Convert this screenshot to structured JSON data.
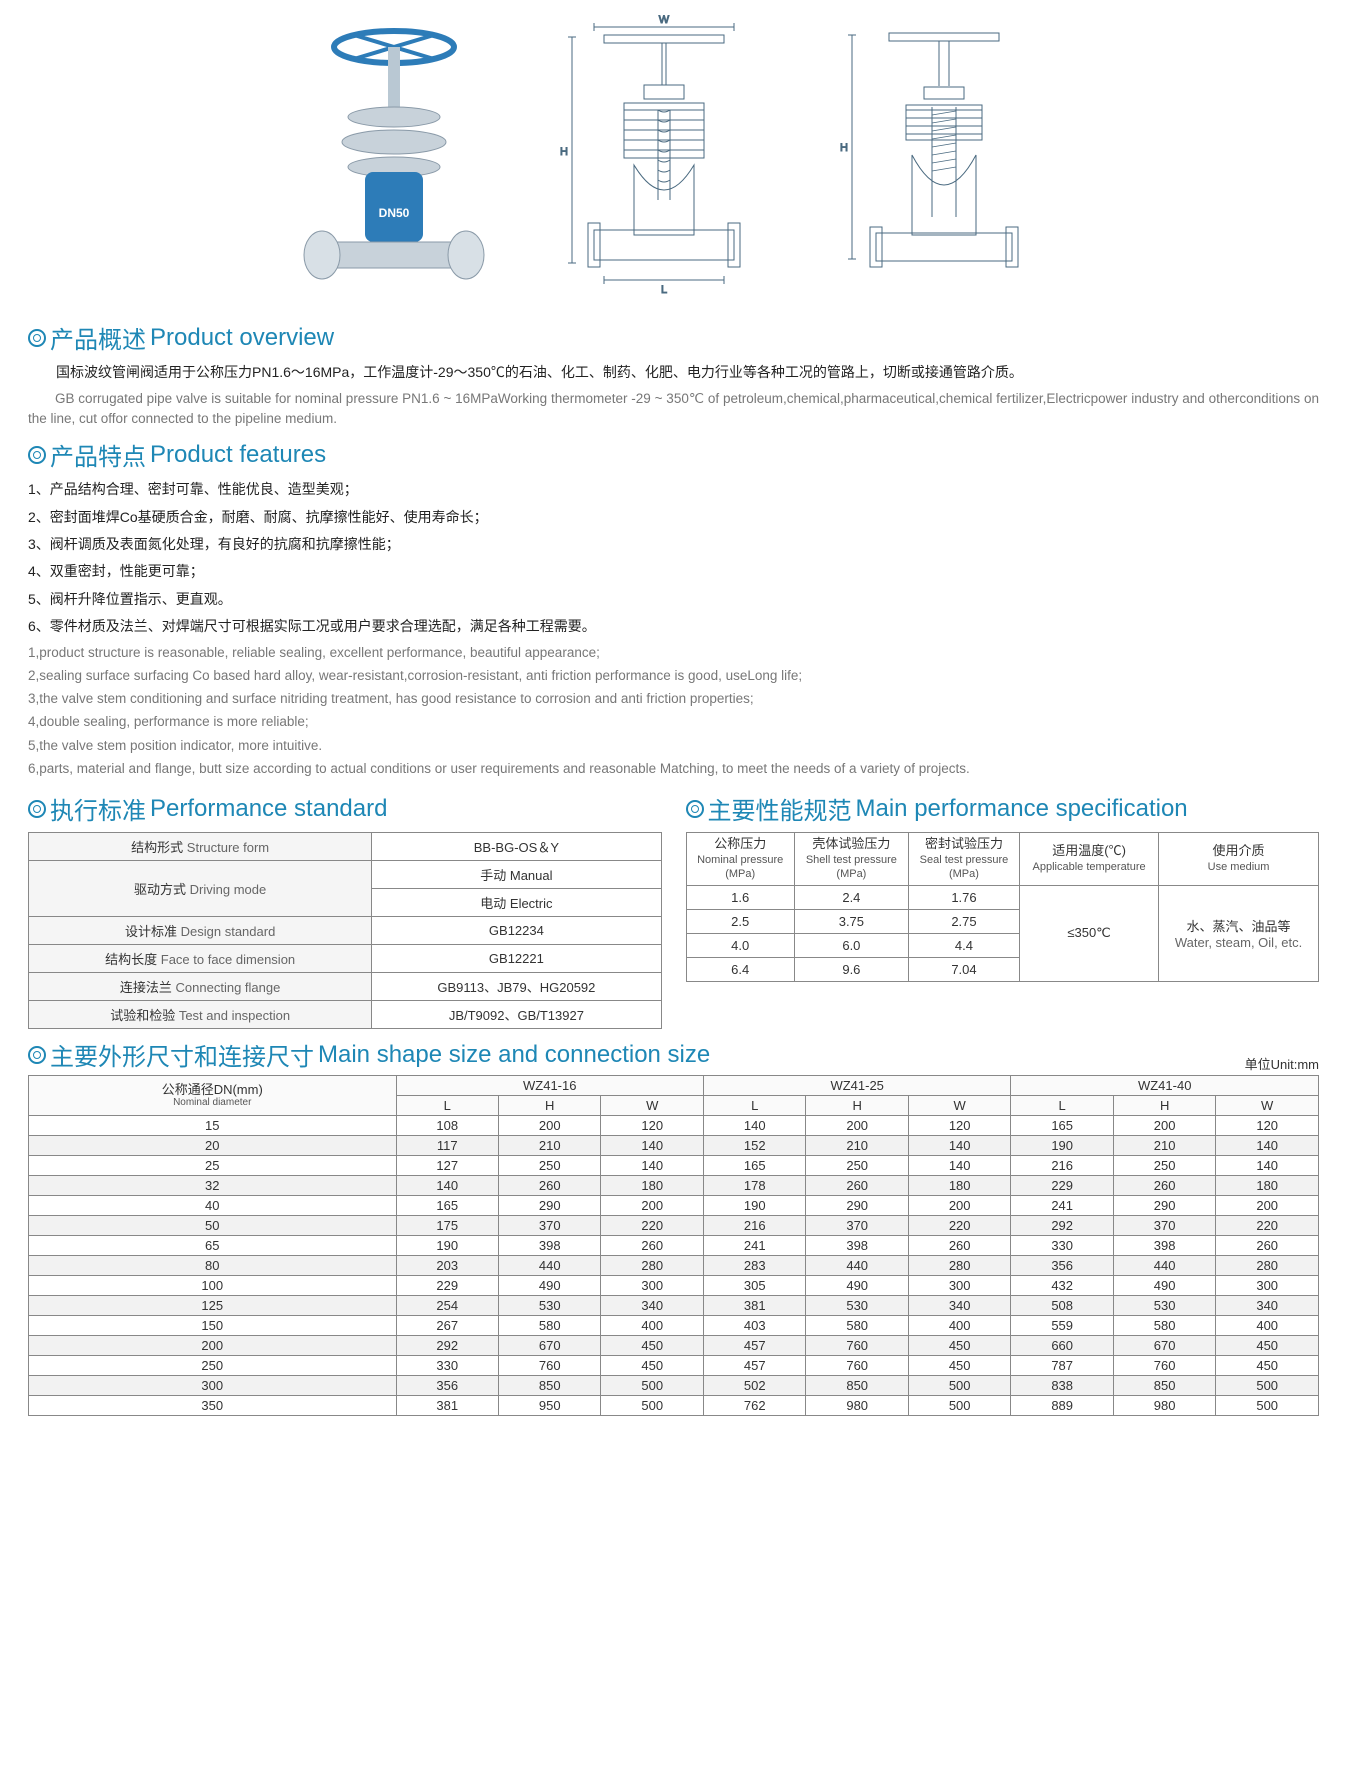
{
  "images_note": "valve photograph + two engineering cross-section drawings with W/H/L dimension callouts",
  "sections": {
    "overview": {
      "title_cn": "产品概述",
      "title_en": "Product overview",
      "p_cn": "国标波纹管闸阀适用于公称压力PN1.6～16MPa，工作温度计-29～350℃的石油、化工、制药、化肥、电力行业等各种工况的管路上，切断或接通管路介质。",
      "p_en": "GB corrugated pipe valve is suitable for nominal pressure PN1.6 ~ 16MPaWorking thermometer -29 ~ 350℃ of petroleum,chemical,pharmaceutical,chemical fertilizer,Electricpower industry and otherconditions on the line, cut offor connected to the pipeline medium."
    },
    "features": {
      "title_cn": "产品特点",
      "title_en": "Product features",
      "cn": [
        "1、产品结构合理、密封可靠、性能优良、造型美观；",
        "2、密封面堆焊Co基硬质合金，耐磨、耐腐、抗摩擦性能好、使用寿命长；",
        "3、阀杆调质及表面氮化处理，有良好的抗腐和抗摩擦性能；",
        "4、双重密封，性能更可靠；",
        "5、阀杆升降位置指示、更直观。",
        "6、零件材质及法兰、对焊端尺寸可根据实际工况或用户要求合理选配，满足各种工程需要。"
      ],
      "en": [
        "1,product structure is reasonable, reliable sealing, excellent performance, beautiful appearance;",
        "2,sealing surface surfacing Co based hard alloy, wear-resistant,corrosion-resistant, anti friction performance is good, useLong life;",
        "3,the valve stem conditioning and surface nitriding treatment, has good resistance to corrosion and anti friction properties;",
        "4,double sealing, performance is more reliable;",
        "5,the valve stem position indicator, more intuitive.",
        "6,parts, material and flange, butt size according to actual conditions or user requirements and reasonable Matching, to meet the needs of a variety of projects."
      ]
    },
    "perf_std": {
      "title_cn": "执行标准",
      "title_en": "Performance standard",
      "rows": [
        {
          "label_cn": "结构形式",
          "label_en": "Structure form",
          "vals": [
            "BB-BG-OS＆Y"
          ]
        },
        {
          "label_cn": "驱动方式",
          "label_en": "Driving mode",
          "vals": [
            "手动 Manual",
            "电动 Electric"
          ]
        },
        {
          "label_cn": "设计标准",
          "label_en": "Design standard",
          "vals": [
            "GB12234"
          ]
        },
        {
          "label_cn": "结构长度",
          "label_en": "Face to face dimension",
          "vals": [
            "GB12221"
          ]
        },
        {
          "label_cn": "连接法兰",
          "label_en": "Connecting flange",
          "vals": [
            "GB9113、JB79、HG20592"
          ]
        },
        {
          "label_cn": "试验和检验",
          "label_en": "Test and inspection",
          "vals": [
            "JB/T9092、GB/T13927"
          ]
        }
      ]
    },
    "main_spec": {
      "title_cn": "主要性能规范",
      "title_en": "Main performance specification",
      "headers": [
        {
          "cn": "公称压力",
          "en": "Nominal pressure",
          "unit": "(MPa)"
        },
        {
          "cn": "壳体试验压力",
          "en": "Shell test pressure",
          "unit": "(MPa)"
        },
        {
          "cn": "密封试验压力",
          "en": "Seal test pressure",
          "unit": "(MPa)"
        },
        {
          "cn": "适用温度(℃)",
          "en": "Applicable temperature",
          "unit": ""
        },
        {
          "cn": "使用介质",
          "en": "Use medium",
          "unit": ""
        }
      ],
      "body": [
        [
          "1.6",
          "2.4",
          "1.76"
        ],
        [
          "2.5",
          "3.75",
          "2.75"
        ],
        [
          "4.0",
          "6.0",
          "4.4"
        ],
        [
          "6.4",
          "9.6",
          "7.04"
        ]
      ],
      "temp": "≤350℃",
      "medium_cn": "水、蒸汽、油品等",
      "medium_en": "Water, steam, Oil, etc."
    },
    "dims": {
      "title_cn": "主要外形尺寸和连接尺寸",
      "title_en": "Main shape size and connection size",
      "unit_label": "单位Unit:mm",
      "dn_label_cn": "公称通径DN(mm)",
      "dn_label_en": "Nominal diameter",
      "models": [
        "WZ41-16",
        "WZ41-25",
        "WZ41-40"
      ],
      "sub": [
        "L",
        "H",
        "W"
      ],
      "rows": [
        [
          "15",
          "108",
          "200",
          "120",
          "140",
          "200",
          "120",
          "165",
          "200",
          "120"
        ],
        [
          "20",
          "117",
          "210",
          "140",
          "152",
          "210",
          "140",
          "190",
          "210",
          "140"
        ],
        [
          "25",
          "127",
          "250",
          "140",
          "165",
          "250",
          "140",
          "216",
          "250",
          "140"
        ],
        [
          "32",
          "140",
          "260",
          "180",
          "178",
          "260",
          "180",
          "229",
          "260",
          "180"
        ],
        [
          "40",
          "165",
          "290",
          "200",
          "190",
          "290",
          "200",
          "241",
          "290",
          "200"
        ],
        [
          "50",
          "175",
          "370",
          "220",
          "216",
          "370",
          "220",
          "292",
          "370",
          "220"
        ],
        [
          "65",
          "190",
          "398",
          "260",
          "241",
          "398",
          "260",
          "330",
          "398",
          "260"
        ],
        [
          "80",
          "203",
          "440",
          "280",
          "283",
          "440",
          "280",
          "356",
          "440",
          "280"
        ],
        [
          "100",
          "229",
          "490",
          "300",
          "305",
          "490",
          "300",
          "432",
          "490",
          "300"
        ],
        [
          "125",
          "254",
          "530",
          "340",
          "381",
          "530",
          "340",
          "508",
          "530",
          "340"
        ],
        [
          "150",
          "267",
          "580",
          "400",
          "403",
          "580",
          "400",
          "559",
          "580",
          "400"
        ],
        [
          "200",
          "292",
          "670",
          "450",
          "457",
          "760",
          "450",
          "660",
          "670",
          "450"
        ],
        [
          "250",
          "330",
          "760",
          "450",
          "457",
          "760",
          "450",
          "787",
          "760",
          "450"
        ],
        [
          "300",
          "356",
          "850",
          "500",
          "502",
          "850",
          "500",
          "838",
          "850",
          "500"
        ],
        [
          "350",
          "381",
          "950",
          "500",
          "762",
          "980",
          "500",
          "889",
          "980",
          "500"
        ]
      ]
    }
  },
  "colors": {
    "heading": "#1e87b5",
    "body_cn": "#222222",
    "body_en": "#777777",
    "table_border": "#888888",
    "row_alt": "#f2f2f2",
    "valve_blue": "#2d7cb8"
  }
}
